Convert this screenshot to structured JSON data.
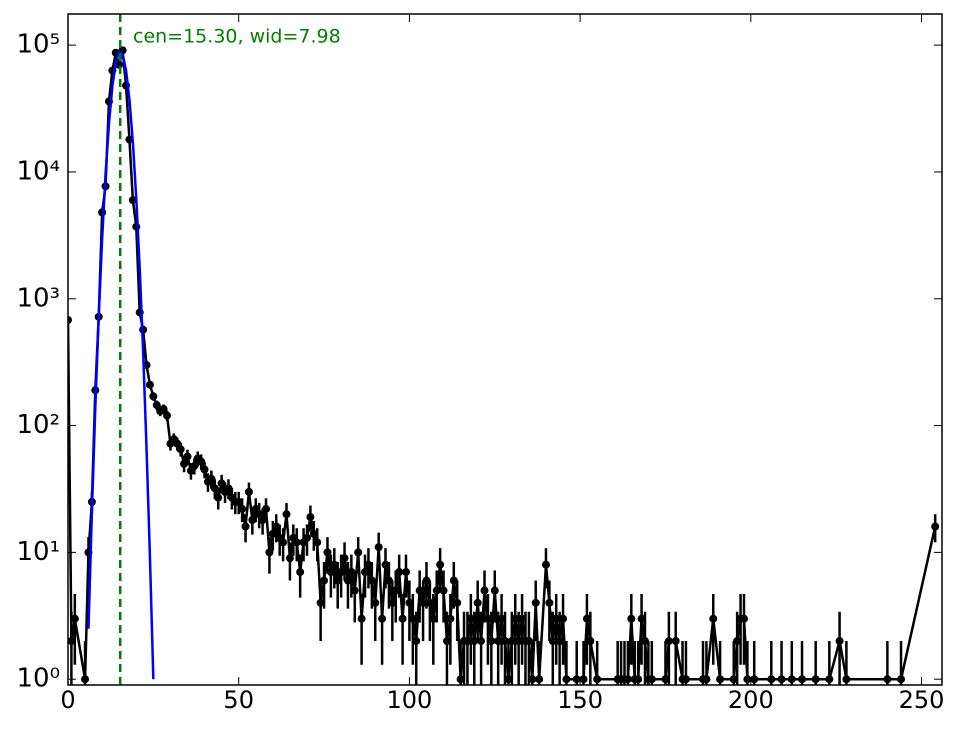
{
  "chart_data": {
    "type": "errorbar",
    "xlim": [
      0,
      256
    ],
    "ylim": [
      0.9,
      176000
    ],
    "log_y": true,
    "xticks": [
      0,
      50,
      100,
      150,
      200,
      250
    ],
    "yticks": [
      {
        "value": 1,
        "label": "10⁰"
      },
      {
        "value": 10,
        "label": "10¹"
      },
      {
        "value": 100,
        "label": "10²"
      },
      {
        "value": 1000,
        "label": "10³"
      },
      {
        "value": 10000,
        "label": "10⁴"
      },
      {
        "value": 100000,
        "label": "10⁵"
      }
    ],
    "x": [
      0,
      1,
      2,
      5,
      6,
      7,
      8,
      9,
      10,
      11,
      12,
      13,
      14,
      15,
      16,
      17,
      18,
      19,
      20,
      21,
      22,
      23,
      24,
      25,
      26,
      27,
      28,
      29,
      30,
      31,
      32,
      33,
      34,
      35,
      36,
      37,
      38,
      39,
      40,
      41,
      42,
      43,
      44,
      45,
      46,
      47,
      48,
      49,
      50,
      51,
      52,
      53,
      54,
      55,
      56,
      57,
      58,
      59,
      60,
      61,
      62,
      63,
      64,
      65,
      66,
      67,
      68,
      69,
      70,
      71,
      72,
      73,
      74,
      75,
      76,
      77,
      78,
      79,
      80,
      81,
      82,
      83,
      84,
      85,
      86,
      87,
      88,
      89,
      90,
      91,
      92,
      93,
      94,
      95,
      96,
      97,
      98,
      99,
      100,
      101,
      102,
      103,
      104,
      105,
      106,
      107,
      108,
      109,
      110,
      111,
      112,
      113,
      114,
      115,
      116,
      117,
      118,
      119,
      120,
      121,
      122,
      123,
      124,
      125,
      126,
      127,
      128,
      129,
      130,
      131,
      132,
      133,
      134,
      135,
      136,
      137,
      138,
      140,
      141,
      142,
      143,
      144,
      145,
      146,
      149,
      151,
      152,
      153,
      155,
      161,
      162,
      163,
      164,
      165,
      166,
      167,
      168,
      169,
      170,
      171,
      175,
      176,
      178,
      180,
      181,
      186,
      187,
      189,
      191,
      195,
      196,
      197,
      198,
      199,
      201,
      206,
      209,
      212,
      215,
      219,
      223,
      226,
      228,
      240,
      244,
      254
    ],
    "series": [
      {
        "color": "#000000",
        "values": [
          680,
          2,
          3,
          1,
          10,
          25,
          190,
          720,
          4800,
          7700,
          36000,
          63000,
          87000,
          70000,
          91000,
          48000,
          18000,
          6000,
          3700,
          780,
          570,
          300,
          210,
          170,
          145,
          130,
          135,
          120,
          72,
          78,
          72,
          65,
          50,
          57,
          44,
          48,
          55,
          52,
          45,
          36,
          38,
          32,
          27,
          35,
          30,
          32,
          27,
          25,
          25,
          22,
          16,
          30,
          18,
          22,
          20,
          18,
          22,
          10,
          14,
          16,
          13,
          12,
          20,
          9,
          13,
          12,
          7,
          12,
          13,
          19,
          14,
          12,
          4,
          6,
          10,
          7,
          8,
          6,
          7,
          9,
          6,
          7,
          5,
          10,
          3,
          7,
          8,
          6,
          4,
          11,
          3,
          8,
          6,
          4,
          5,
          7,
          3,
          7,
          4,
          3,
          2,
          5,
          4,
          6,
          4,
          3,
          5,
          8,
          5,
          2,
          3,
          6,
          4,
          1,
          2,
          2,
          3,
          2,
          4,
          2,
          5,
          3,
          2,
          5,
          2,
          3,
          2,
          1,
          2,
          3,
          2,
          3,
          2,
          2,
          1,
          4,
          1,
          8,
          4,
          2,
          3,
          2,
          3,
          1,
          1,
          1,
          3,
          2,
          1,
          1,
          1,
          1,
          1,
          3,
          1,
          1,
          3,
          2,
          1,
          1,
          1,
          2,
          2,
          1,
          1,
          1,
          1,
          3,
          1,
          1,
          2,
          3,
          3,
          1,
          1,
          1,
          1,
          1,
          1,
          1,
          1,
          2,
          1,
          1,
          1,
          16
        ],
        "errors": [
          26.1,
          1.4,
          1.7,
          1,
          3.2,
          5,
          13.8,
          26.8,
          69,
          88,
          190,
          251,
          295,
          265,
          302,
          219,
          134,
          77,
          61,
          27.9,
          23.9,
          17.3,
          14.5,
          13,
          12,
          11.4,
          11.6,
          11,
          8.5,
          8.8,
          8.5,
          8.1,
          7.1,
          7.5,
          6.6,
          6.9,
          7.4,
          7.2,
          6.7,
          6,
          6.2,
          5.7,
          5.2,
          5.9,
          5.5,
          5.7,
          5.2,
          5,
          5,
          4.7,
          4,
          5.5,
          4.2,
          4.7,
          4.5,
          4.2,
          4.7,
          3.2,
          3.7,
          4,
          3.6,
          3.5,
          4.5,
          3,
          3.6,
          3.5,
          2.6,
          3.5,
          3.6,
          4.4,
          3.7,
          3.5,
          2,
          2.4,
          3.2,
          2.6,
          2.8,
          2.4,
          2.6,
          3,
          2.4,
          2.6,
          2.2,
          3.2,
          1.7,
          2.6,
          2.8,
          2.4,
          2,
          3.3,
          1.7,
          2.8,
          2.4,
          2,
          2.2,
          2.6,
          1.7,
          2.6,
          2,
          1.7,
          1.4,
          2.2,
          2,
          2.4,
          2,
          1.7,
          2.2,
          2.8,
          2.2,
          1.4,
          1.7,
          2.4,
          2,
          1,
          1.4,
          1.4,
          1.7,
          1.4,
          2,
          1.4,
          2.2,
          1.7,
          1.4,
          2.2,
          1.4,
          1.7,
          1.4,
          1,
          1.4,
          1.7,
          1.4,
          1.7,
          1.4,
          1.4,
          1,
          2,
          1,
          2.8,
          2,
          1.4,
          1.7,
          1.4,
          1.7,
          1,
          1,
          1,
          1.7,
          1.4,
          1,
          1,
          1,
          1,
          1,
          1.7,
          1,
          1,
          1.7,
          1.4,
          1,
          1,
          1,
          1.4,
          1.4,
          1,
          1,
          1,
          1,
          1.7,
          1,
          1,
          1.4,
          1.7,
          1.7,
          1,
          1,
          1,
          1,
          1,
          1,
          1,
          1,
          1.4,
          1,
          1,
          1,
          4
        ]
      }
    ],
    "fit_line": {
      "color": "#0000ff",
      "x": [
        6,
        7,
        8,
        9,
        10,
        11,
        12,
        13,
        14,
        15,
        16,
        17,
        18,
        19,
        20,
        21,
        22,
        23,
        24,
        25
      ],
      "values": [
        2.5,
        21,
        139,
        726,
        2970,
        9570,
        24000,
        47400,
        73300,
        89000,
        84800,
        63400,
        37100,
        17100,
        6170,
        1750,
        387,
        67,
        9.2,
        1.0
      ]
    },
    "vline": {
      "x": 15.3,
      "color": "#008000"
    },
    "annotation": "cen=15.30, wid=7.98"
  }
}
